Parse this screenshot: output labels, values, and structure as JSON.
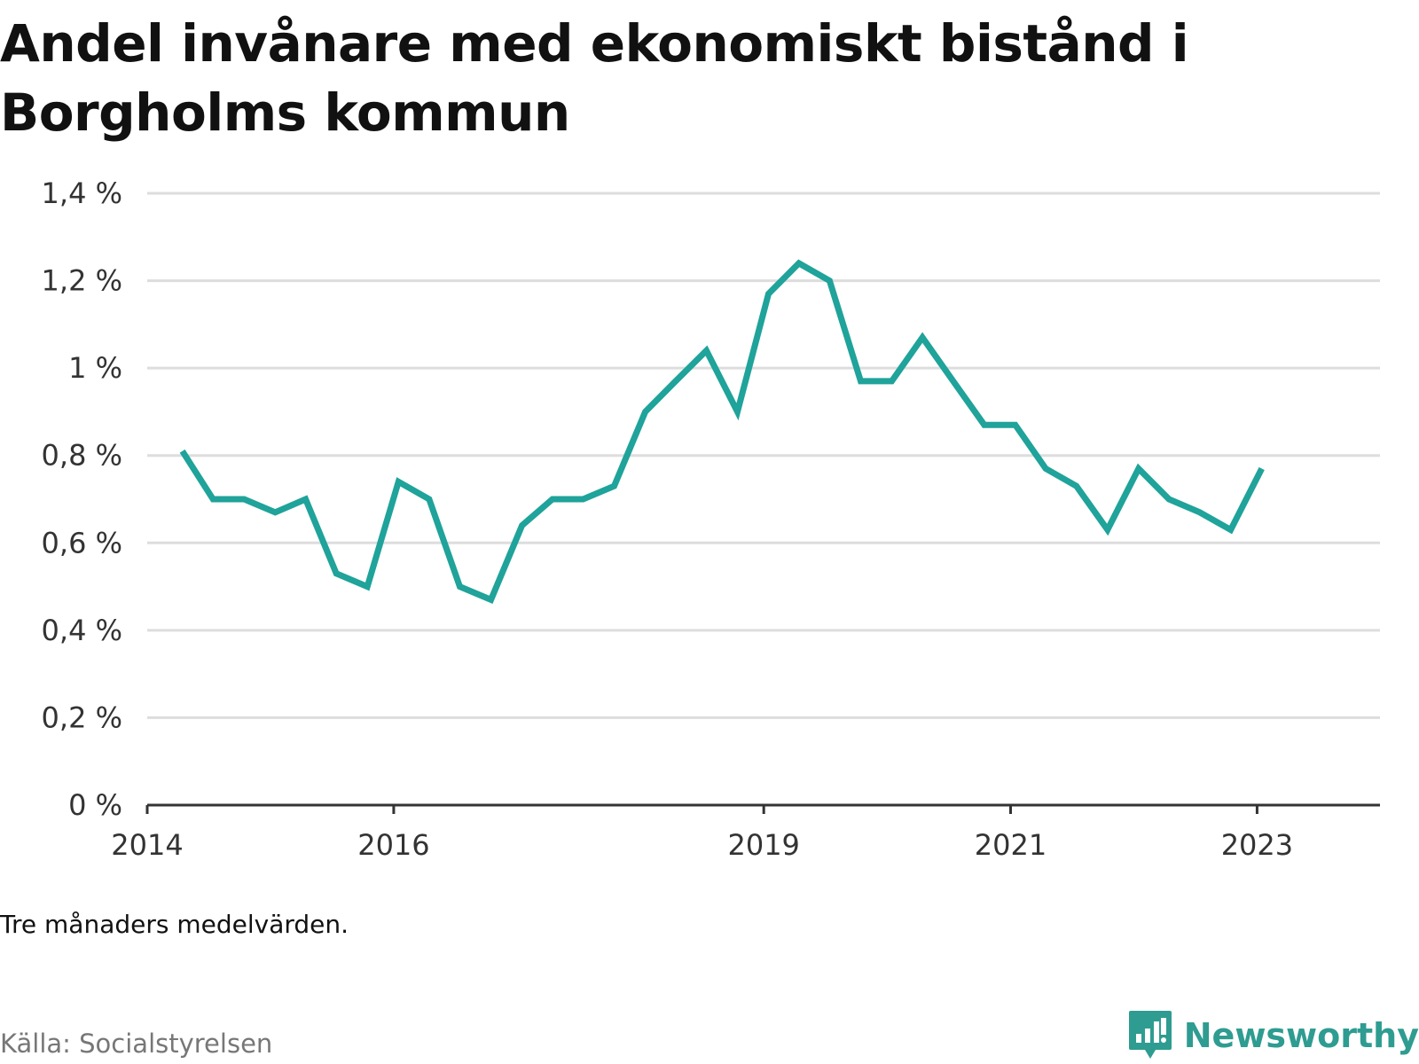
{
  "title": "Andel invånare med ekonomiskt bistånd i Borgholms kommun",
  "note": "Tre månaders medelvärden.",
  "source": "Källa: Socialstyrelsen",
  "brand": {
    "name": "Newsworthy",
    "icon": "newsworthy-logo-icon"
  },
  "colors": {
    "line": "#1fa39a",
    "grid": "#dddddd",
    "axis": "#333333",
    "brand": "#2e9c91"
  },
  "chart_data": {
    "type": "line",
    "title": "Andel invånare med ekonomiskt bistånd i Borgholms kommun",
    "xlabel": "",
    "ylabel": "",
    "grid": true,
    "xlim": [
      "2014-01-01",
      "2023-12-31"
    ],
    "ylim": [
      0,
      1.4
    ],
    "y_ticks": [
      0,
      0.2,
      0.4,
      0.6,
      0.8,
      1,
      1.2,
      1.4
    ],
    "y_tick_labels": [
      "0 %",
      "0,2 %",
      "0,4 %",
      "0,6 %",
      "0,8 %",
      "1 %",
      "1,2 %",
      "1,4 %"
    ],
    "x_ticks": [
      "2014-01-01",
      "2016-01-01",
      "2019-01-01",
      "2021-01-01",
      "2023-01-01"
    ],
    "x_tick_labels": [
      "2014",
      "2016",
      "2019",
      "2021",
      "2023"
    ],
    "series": [
      {
        "x": [
          "2014-04-15",
          "2014-07-15",
          "2014-10-15",
          "2015-01-15",
          "2015-04-15",
          "2015-07-15",
          "2015-10-15",
          "2016-01-15",
          "2016-04-15",
          "2016-07-15",
          "2016-10-15",
          "2017-01-15",
          "2017-04-15",
          "2017-07-15",
          "2017-10-15",
          "2018-01-15",
          "2018-04-15",
          "2018-07-15",
          "2018-10-15",
          "2019-01-15",
          "2019-04-15",
          "2019-07-15",
          "2019-10-15",
          "2020-01-15",
          "2020-04-15",
          "2020-07-15",
          "2020-10-15",
          "2021-01-15",
          "2021-04-15",
          "2021-07-15",
          "2021-10-15",
          "2022-01-15",
          "2022-04-15",
          "2022-07-15",
          "2022-10-15",
          "2023-01-15"
        ],
        "values": [
          0.81,
          0.7,
          0.7,
          0.67,
          0.7,
          0.53,
          0.5,
          0.74,
          0.7,
          0.5,
          0.47,
          0.64,
          0.7,
          0.7,
          0.73,
          0.9,
          0.97,
          1.04,
          0.9,
          1.17,
          1.24,
          1.2,
          0.97,
          0.97,
          1.07,
          0.97,
          0.87,
          0.87,
          0.77,
          0.73,
          0.63,
          0.77,
          0.7,
          0.67,
          0.63,
          0.77
        ]
      }
    ]
  }
}
